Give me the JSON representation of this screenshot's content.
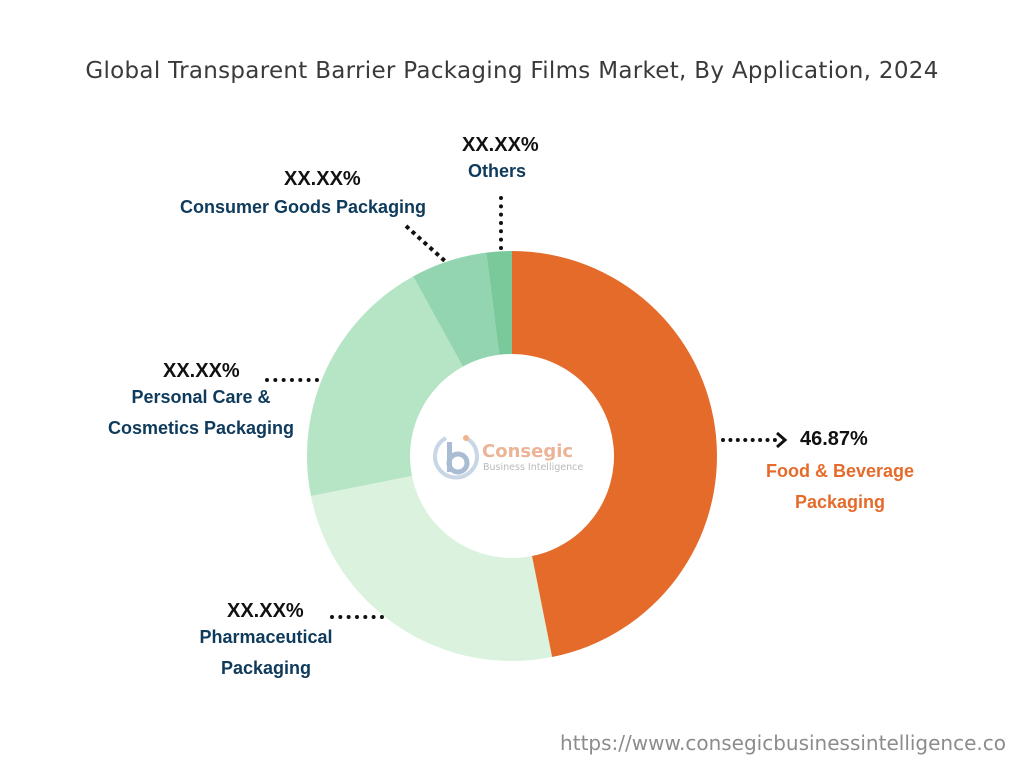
{
  "chart_data": {
    "type": "pie",
    "donut": true,
    "title": "Global Transparent Barrier Packaging Films Market, By Application, 2024",
    "slices": [
      {
        "label": "Food & Beverage Packaging",
        "value_label": "46.87%",
        "value": 46.87,
        "color": "#e56b2a",
        "label_color": "#e56b2a"
      },
      {
        "label": "Pharmaceutical Packaging",
        "value_label": "XX.XX%",
        "value": 25.0,
        "color": "#dbf2de",
        "label_color": "#0e3a5c"
      },
      {
        "label": "Personal Care & Cosmetics Packaging",
        "value_label": "XX.XX%",
        "value": 20.13,
        "color": "#b6e5c6",
        "label_color": "#0e3a5c"
      },
      {
        "label": "Consumer Goods Packaging",
        "value_label": "XX.XX%",
        "value": 6.0,
        "color": "#93d5b0",
        "label_color": "#0e3a5c"
      },
      {
        "label": "Others",
        "value_label": "XX.XX%",
        "value": 2.0,
        "color": "#79c99a",
        "label_color": "#0e3a5c"
      }
    ],
    "legend": "none"
  },
  "watermark": {
    "name": "Consegic",
    "tagline": "Business Intelligence"
  },
  "labels": {
    "food": {
      "pct": "46.87%",
      "line1": "Food & Beverage",
      "line2": "Packaging"
    },
    "pharma": {
      "pct": "XX.XX%",
      "line1": "Pharmaceutical",
      "line2": "Packaging"
    },
    "personal": {
      "pct": "XX.XX%",
      "line1": "Personal Care &",
      "line2": "Cosmetics Packaging"
    },
    "consumer": {
      "pct": "XX.XX%",
      "line1": "Consumer Goods Packaging"
    },
    "others": {
      "pct": "XX.XX%",
      "line1": "Others"
    }
  },
  "source_url": "https://www.consegicbusinessintelligence.co"
}
